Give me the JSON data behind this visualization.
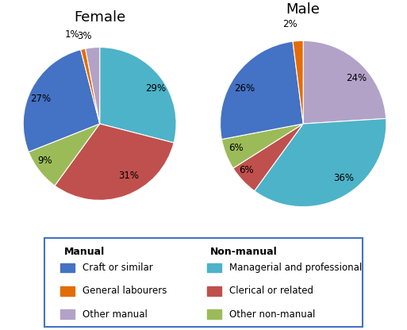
{
  "female": {
    "title": "Female",
    "values": [
      29,
      31,
      9,
      27,
      1,
      3
    ],
    "labels": [
      "29%",
      "31%",
      "9%",
      "27%",
      "1%",
      "3%"
    ],
    "colors": [
      "#4db3c8",
      "#c0504d",
      "#9bbb59",
      "#4472c4",
      "#e36c09",
      "#b3a2c7"
    ],
    "startangle": 90,
    "label_distances": [
      0.75,
      0.72,
      0.78,
      0.72,
      1.2,
      1.15
    ]
  },
  "male": {
    "title": "Male",
    "values": [
      24,
      36,
      6,
      6,
      26,
      2
    ],
    "labels": [
      "24%",
      "36%",
      "6%",
      "6%",
      "26%",
      "2%"
    ],
    "colors": [
      "#b3a2c7",
      "#4db3c8",
      "#c0504d",
      "#9bbb59",
      "#4472c4",
      "#e36c09"
    ],
    "startangle": 90,
    "label_distances": [
      0.75,
      0.75,
      0.82,
      0.78,
      0.72,
      1.2
    ]
  },
  "legend_categories": {
    "Manual": [
      "Craft or similar",
      "General labourers",
      "Other manual"
    ],
    "Non-manual": [
      "Managerial and professional",
      "Clerical or related",
      "Other non-manual"
    ]
  },
  "legend_colors": {
    "Craft or similar": "#4472c4",
    "General labourers": "#e36c09",
    "Other manual": "#b3a2c7",
    "Managerial and professional": "#4db3c8",
    "Clerical or related": "#c0504d",
    "Other non-manual": "#9bbb59"
  },
  "legend_border_color": "#4472c4",
  "figsize": [
    5.13,
    4.16
  ],
  "dpi": 100
}
